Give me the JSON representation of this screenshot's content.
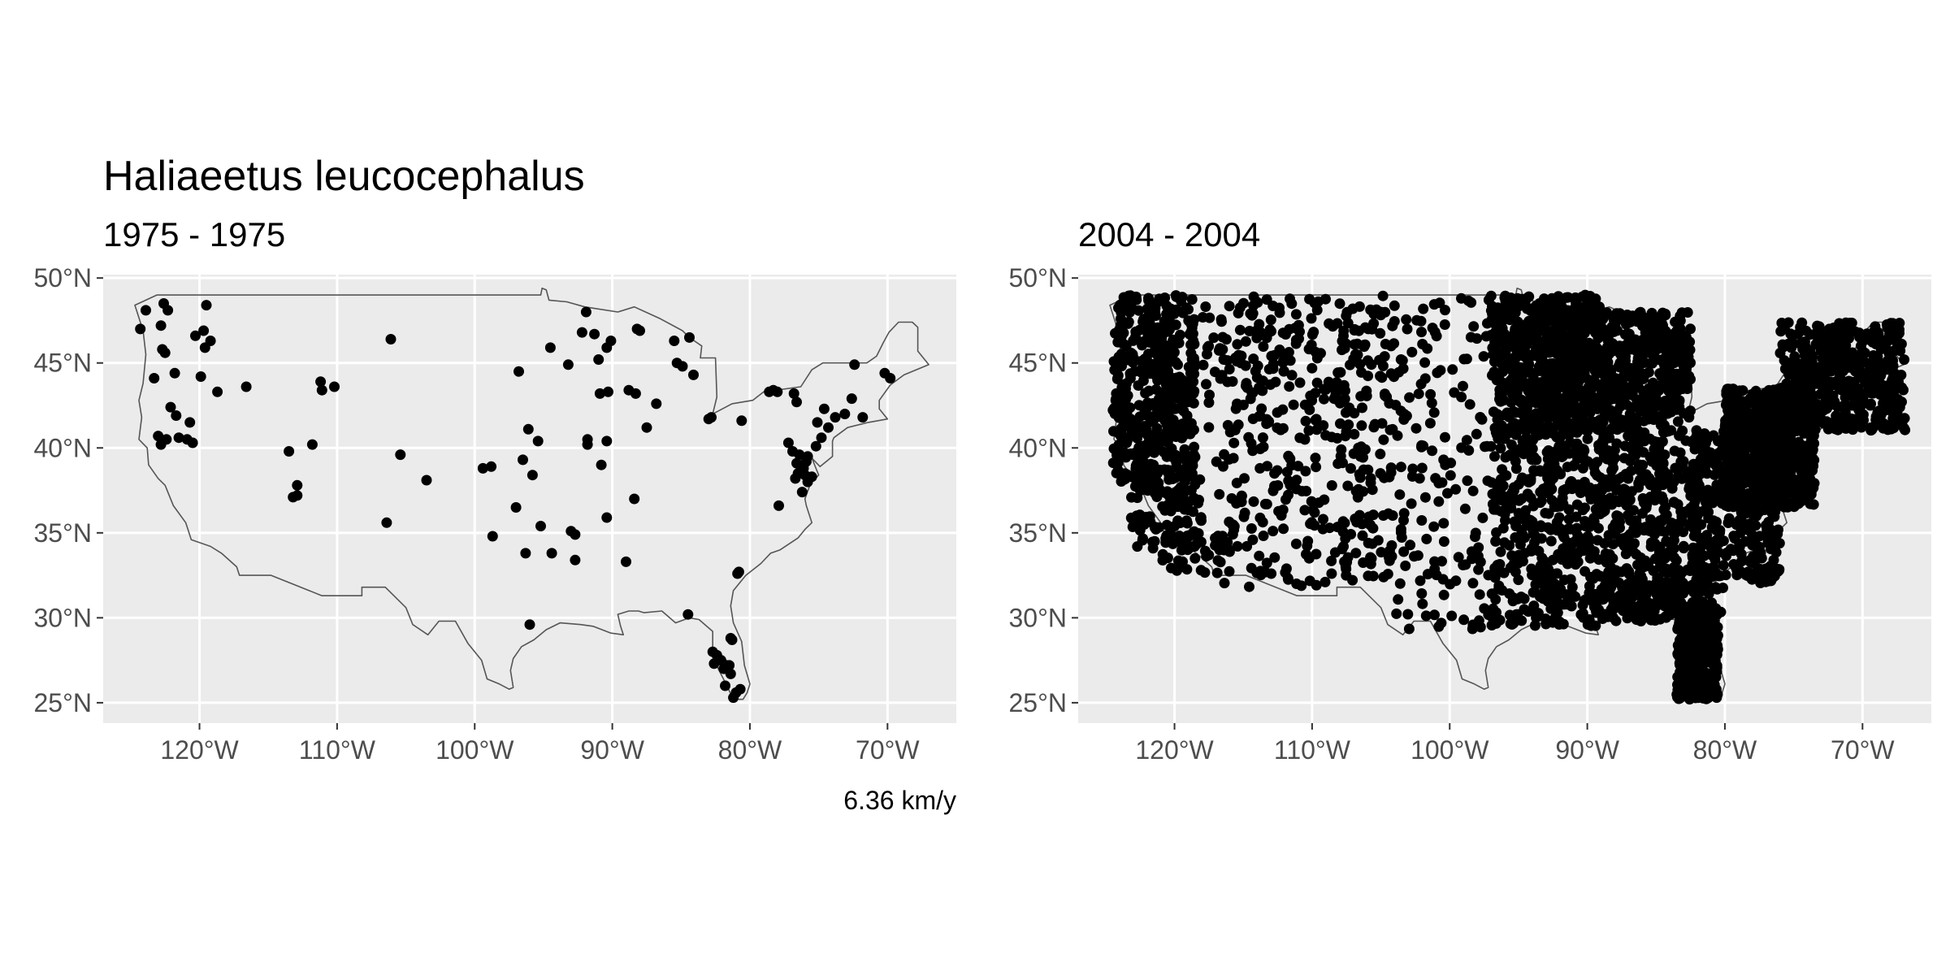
{
  "title": "Haliaeetus leucocephalus",
  "caption": "6.36 km/y",
  "chart_data": [
    {
      "type": "scatter",
      "subtitle": "1975 - 1975",
      "xlim": [
        -127,
        -65
      ],
      "ylim": [
        23.8,
        50.2
      ],
      "x_ticks": [
        -120,
        -110,
        -100,
        -90,
        -80,
        -70
      ],
      "x_tick_labels": [
        "120°W",
        "110°W",
        "100°W",
        "90°W",
        "80°W",
        "70°W"
      ],
      "y_ticks": [
        25,
        30,
        35,
        40,
        45,
        50
      ],
      "y_tick_labels": [
        "25°N",
        "30°N",
        "35°N",
        "40°N",
        "45°N",
        "50°N"
      ],
      "grid": true,
      "points": [
        [
          -124.3,
          47.0
        ],
        [
          -123.9,
          48.1
        ],
        [
          -122.6,
          48.5
        ],
        [
          -122.3,
          48.1
        ],
        [
          -122.8,
          47.2
        ],
        [
          -122.7,
          45.8
        ],
        [
          -122.5,
          45.6
        ],
        [
          -123.3,
          44.1
        ],
        [
          -121.8,
          44.4
        ],
        [
          -122.1,
          42.4
        ],
        [
          -121.7,
          41.9
        ],
        [
          -123.0,
          40.7
        ],
        [
          -122.4,
          40.5
        ],
        [
          -121.5,
          40.6
        ],
        [
          -120.9,
          40.5
        ],
        [
          -120.5,
          40.3
        ],
        [
          -122.8,
          40.2
        ],
        [
          -120.7,
          41.5
        ],
        [
          -120.3,
          46.6
        ],
        [
          -119.7,
          46.9
        ],
        [
          -119.2,
          46.3
        ],
        [
          -119.6,
          45.9
        ],
        [
          -119.5,
          48.4
        ],
        [
          -119.9,
          44.2
        ],
        [
          -118.7,
          43.3
        ],
        [
          -116.6,
          43.6
        ],
        [
          -113.5,
          39.8
        ],
        [
          -113.2,
          37.1
        ],
        [
          -112.9,
          37.8
        ],
        [
          -112.9,
          37.2
        ],
        [
          -111.8,
          40.2
        ],
        [
          -111.2,
          43.9
        ],
        [
          -111.1,
          43.4
        ],
        [
          -110.2,
          43.6
        ],
        [
          -106.1,
          46.4
        ],
        [
          -105.4,
          39.6
        ],
        [
          -106.4,
          35.6
        ],
        [
          -103.5,
          38.1
        ],
        [
          -99.4,
          38.8
        ],
        [
          -98.8,
          38.9
        ],
        [
          -98.7,
          34.8
        ],
        [
          -96.8,
          44.5
        ],
        [
          -97.0,
          36.5
        ],
        [
          -96.5,
          39.3
        ],
        [
          -96.1,
          41.1
        ],
        [
          -95.8,
          38.4
        ],
        [
          -95.4,
          40.4
        ],
        [
          -96.3,
          33.8
        ],
        [
          -96.0,
          29.6
        ],
        [
          -95.2,
          35.4
        ],
        [
          -94.5,
          45.9
        ],
        [
          -93.2,
          44.9
        ],
        [
          -93.0,
          35.1
        ],
        [
          -92.7,
          34.9
        ],
        [
          -92.7,
          33.4
        ],
        [
          -94.4,
          33.8
        ],
        [
          -91.9,
          48.0
        ],
        [
          -92.2,
          46.8
        ],
        [
          -91.3,
          46.7
        ],
        [
          -90.1,
          46.3
        ],
        [
          -90.4,
          45.9
        ],
        [
          -91.0,
          45.2
        ],
        [
          -90.9,
          43.2
        ],
        [
          -90.3,
          43.3
        ],
        [
          -90.8,
          39.0
        ],
        [
          -90.4,
          35.9
        ],
        [
          -91.8,
          40.2
        ],
        [
          -91.8,
          40.5
        ],
        [
          -90.4,
          40.4
        ],
        [
          -88.8,
          43.4
        ],
        [
          -88.3,
          43.2
        ],
        [
          -88.0,
          46.9
        ],
        [
          -88.2,
          47.0
        ],
        [
          -87.5,
          41.2
        ],
        [
          -86.8,
          42.6
        ],
        [
          -88.4,
          37.0
        ],
        [
          -89.0,
          33.3
        ],
        [
          -85.5,
          46.3
        ],
        [
          -85.3,
          45.0
        ],
        [
          -84.9,
          44.8
        ],
        [
          -84.4,
          46.5
        ],
        [
          -84.1,
          44.3
        ],
        [
          -83.0,
          41.7
        ],
        [
          -82.8,
          41.8
        ],
        [
          -80.6,
          41.6
        ],
        [
          -84.5,
          30.2
        ],
        [
          -82.7,
          28.0
        ],
        [
          -82.4,
          27.8
        ],
        [
          -82.6,
          27.3
        ],
        [
          -82.1,
          27.5
        ],
        [
          -81.7,
          27.2
        ],
        [
          -81.9,
          27.0
        ],
        [
          -81.5,
          27.2
        ],
        [
          -81.3,
          28.7
        ],
        [
          -81.4,
          28.8
        ],
        [
          -81.4,
          26.7
        ],
        [
          -81.8,
          26.0
        ],
        [
          -81.0,
          25.6
        ],
        [
          -80.7,
          25.8
        ],
        [
          -81.2,
          25.3
        ],
        [
          -80.9,
          32.6
        ],
        [
          -80.8,
          32.7
        ],
        [
          -78.6,
          43.3
        ],
        [
          -78.3,
          43.4
        ],
        [
          -78.0,
          43.3
        ],
        [
          -76.8,
          43.2
        ],
        [
          -76.6,
          42.7
        ],
        [
          -77.2,
          40.3
        ],
        [
          -76.6,
          39.1
        ],
        [
          -76.4,
          39.6
        ],
        [
          -76.5,
          38.5
        ],
        [
          -76.1,
          38.8
        ],
        [
          -76.7,
          38.2
        ],
        [
          -76.0,
          38.4
        ],
        [
          -76.2,
          37.4
        ],
        [
          -75.8,
          38.0
        ],
        [
          -75.5,
          38.3
        ],
        [
          -76.9,
          39.8
        ],
        [
          -75.9,
          39.2
        ],
        [
          -75.8,
          39.5
        ],
        [
          -75.2,
          40.1
        ],
        [
          -75.1,
          41.5
        ],
        [
          -74.6,
          42.3
        ],
        [
          -74.8,
          40.6
        ],
        [
          -74.3,
          41.2
        ],
        [
          -73.8,
          41.8
        ],
        [
          -73.1,
          42.0
        ],
        [
          -72.6,
          42.9
        ],
        [
          -72.4,
          44.9
        ],
        [
          -71.8,
          41.8
        ],
        [
          -70.2,
          44.4
        ],
        [
          -69.8,
          44.1
        ],
        [
          -77.9,
          36.6
        ]
      ]
    },
    {
      "type": "scatter",
      "subtitle": "2004 - 2004",
      "xlim": [
        -127,
        -65
      ],
      "ylim": [
        23.8,
        50.2
      ],
      "x_ticks": [
        -120,
        -110,
        -100,
        -90,
        -80,
        -70
      ],
      "x_tick_labels": [
        "120°W",
        "110°W",
        "100°W",
        "90°W",
        "80°W",
        "70°W"
      ],
      "y_ticks": [
        25,
        30,
        35,
        40,
        45,
        50
      ],
      "y_tick_labels": [
        "25°N",
        "30°N",
        "35°N",
        "40°N",
        "45°N",
        "50°N"
      ],
      "grid": true,
      "points": [],
      "density_regions": [
        {
          "lon": [
            -124.5,
            -118.5
          ],
          "lat": [
            38.0,
            49.0
          ],
          "n": 430
        },
        {
          "lon": [
            -123.5,
            -118.0
          ],
          "lat": [
            34.0,
            38.5
          ],
          "n": 110
        },
        {
          "lon": [
            -121.0,
            -116.0
          ],
          "lat": [
            32.6,
            35.0
          ],
          "n": 45
        },
        {
          "lon": [
            -118.0,
            -104.0
          ],
          "lat": [
            41.0,
            49.0
          ],
          "n": 250
        },
        {
          "lon": [
            -117.0,
            -104.0
          ],
          "lat": [
            31.8,
            41.0
          ],
          "n": 200
        },
        {
          "lon": [
            -104.0,
            -97.0
          ],
          "lat": [
            29.0,
            49.0
          ],
          "n": 150
        },
        {
          "lon": [
            -97.0,
            -89.0
          ],
          "lat": [
            41.0,
            49.0
          ],
          "n": 620
        },
        {
          "lon": [
            -97.0,
            -89.0
          ],
          "lat": [
            29.5,
            41.0
          ],
          "n": 420
        },
        {
          "lon": [
            -89.0,
            -82.5
          ],
          "lat": [
            41.5,
            48.0
          ],
          "n": 380
        },
        {
          "lon": [
            -89.0,
            -82.0
          ],
          "lat": [
            30.0,
            41.5
          ],
          "n": 360
        },
        {
          "lon": [
            -83.5,
            -80.5
          ],
          "lat": [
            25.2,
            30.6
          ],
          "n": 420
        },
        {
          "lon": [
            -82.5,
            -76.0
          ],
          "lat": [
            32.0,
            41.0
          ],
          "n": 380
        },
        {
          "lon": [
            -80.0,
            -73.5
          ],
          "lat": [
            36.5,
            43.5
          ],
          "n": 620
        },
        {
          "lon": [
            -76.0,
            -66.9
          ],
          "lat": [
            41.0,
            47.4
          ],
          "n": 450
        },
        {
          "lon": [
            -89.5,
            -80.0
          ],
          "lat": [
            29.8,
            33.0
          ],
          "n": 110
        }
      ]
    }
  ],
  "usa_outline": [
    [
      -124.7,
      48.4
    ],
    [
      -123.1,
      49.0
    ],
    [
      -95.2,
      49.0
    ],
    [
      -95.1,
      49.4
    ],
    [
      -94.8,
      49.3
    ],
    [
      -94.6,
      48.7
    ],
    [
      -93.3,
      48.6
    ],
    [
      -92.0,
      48.3
    ],
    [
      -89.6,
      48.0
    ],
    [
      -88.4,
      48.3
    ],
    [
      -86.5,
      47.6
    ],
    [
      -84.9,
      46.9
    ],
    [
      -84.4,
      46.5
    ],
    [
      -83.5,
      46.0
    ],
    [
      -83.6,
      45.3
    ],
    [
      -82.5,
      45.3
    ],
    [
      -82.4,
      43.0
    ],
    [
      -82.7,
      42.0
    ],
    [
      -81.3,
      42.6
    ],
    [
      -79.8,
      42.8
    ],
    [
      -79.0,
      43.3
    ],
    [
      -76.3,
      43.6
    ],
    [
      -75.5,
      44.6
    ],
    [
      -74.7,
      45.0
    ],
    [
      -71.5,
      45.0
    ],
    [
      -70.8,
      45.4
    ],
    [
      -70.3,
      46.2
    ],
    [
      -69.9,
      46.8
    ],
    [
      -69.2,
      47.4
    ],
    [
      -68.2,
      47.4
    ],
    [
      -67.8,
      47.1
    ],
    [
      -67.8,
      45.7
    ],
    [
      -67.0,
      44.9
    ],
    [
      -68.8,
      44.3
    ],
    [
      -69.8,
      43.7
    ],
    [
      -70.6,
      42.8
    ],
    [
      -70.6,
      42.3
    ],
    [
      -70.0,
      41.7
    ],
    [
      -71.4,
      41.5
    ],
    [
      -72.9,
      41.2
    ],
    [
      -73.9,
      40.6
    ],
    [
      -74.0,
      40.4
    ],
    [
      -74.0,
      39.5
    ],
    [
      -74.9,
      38.9
    ],
    [
      -75.5,
      39.4
    ],
    [
      -75.0,
      38.4
    ],
    [
      -75.6,
      37.9
    ],
    [
      -76.0,
      37.0
    ],
    [
      -75.9,
      36.6
    ],
    [
      -75.5,
      35.6
    ],
    [
      -76.0,
      35.2
    ],
    [
      -76.5,
      34.7
    ],
    [
      -77.8,
      34.0
    ],
    [
      -78.5,
      33.8
    ],
    [
      -79.2,
      33.2
    ],
    [
      -80.3,
      32.5
    ],
    [
      -81.2,
      31.6
    ],
    [
      -81.4,
      30.7
    ],
    [
      -81.2,
      29.7
    ],
    [
      -80.6,
      28.6
    ],
    [
      -80.4,
      27.2
    ],
    [
      -80.0,
      26.1
    ],
    [
      -80.2,
      25.6
    ],
    [
      -80.5,
      25.2
    ],
    [
      -81.2,
      25.2
    ],
    [
      -81.8,
      26.2
    ],
    [
      -82.3,
      27.0
    ],
    [
      -82.7,
      28.0
    ],
    [
      -82.7,
      29.2
    ],
    [
      -83.7,
      29.9
    ],
    [
      -84.4,
      30.0
    ],
    [
      -85.4,
      29.7
    ],
    [
      -86.4,
      30.4
    ],
    [
      -87.7,
      30.3
    ],
    [
      -88.1,
      30.4
    ],
    [
      -88.8,
      30.4
    ],
    [
      -89.6,
      30.2
    ],
    [
      -89.4,
      29.5
    ],
    [
      -89.2,
      29.0
    ],
    [
      -90.1,
      29.1
    ],
    [
      -91.4,
      29.5
    ],
    [
      -92.3,
      29.6
    ],
    [
      -93.8,
      29.7
    ],
    [
      -94.8,
      29.3
    ],
    [
      -95.7,
      28.7
    ],
    [
      -96.6,
      28.3
    ],
    [
      -97.2,
      27.6
    ],
    [
      -97.4,
      26.9
    ],
    [
      -97.2,
      25.9
    ],
    [
      -97.5,
      25.8
    ],
    [
      -98.2,
      26.1
    ],
    [
      -99.1,
      26.4
    ],
    [
      -99.5,
      27.5
    ],
    [
      -100.5,
      28.5
    ],
    [
      -101.4,
      29.8
    ],
    [
      -102.6,
      29.8
    ],
    [
      -103.4,
      29.0
    ],
    [
      -104.5,
      29.6
    ],
    [
      -105.0,
      30.6
    ],
    [
      -106.5,
      31.8
    ],
    [
      -108.2,
      31.8
    ],
    [
      -108.2,
      31.3
    ],
    [
      -111.1,
      31.3
    ],
    [
      -114.8,
      32.5
    ],
    [
      -117.1,
      32.5
    ],
    [
      -117.3,
      33.0
    ],
    [
      -118.4,
      33.8
    ],
    [
      -119.2,
      34.2
    ],
    [
      -120.6,
      34.6
    ],
    [
      -121.0,
      35.6
    ],
    [
      -121.9,
      36.6
    ],
    [
      -122.5,
      37.8
    ],
    [
      -123.0,
      38.2
    ],
    [
      -123.7,
      39.0
    ],
    [
      -123.8,
      40.0
    ],
    [
      -124.4,
      40.5
    ],
    [
      -124.2,
      41.8
    ],
    [
      -124.4,
      42.8
    ],
    [
      -124.1,
      43.8
    ],
    [
      -123.9,
      45.5
    ],
    [
      -124.1,
      46.9
    ],
    [
      -124.7,
      48.4
    ]
  ]
}
